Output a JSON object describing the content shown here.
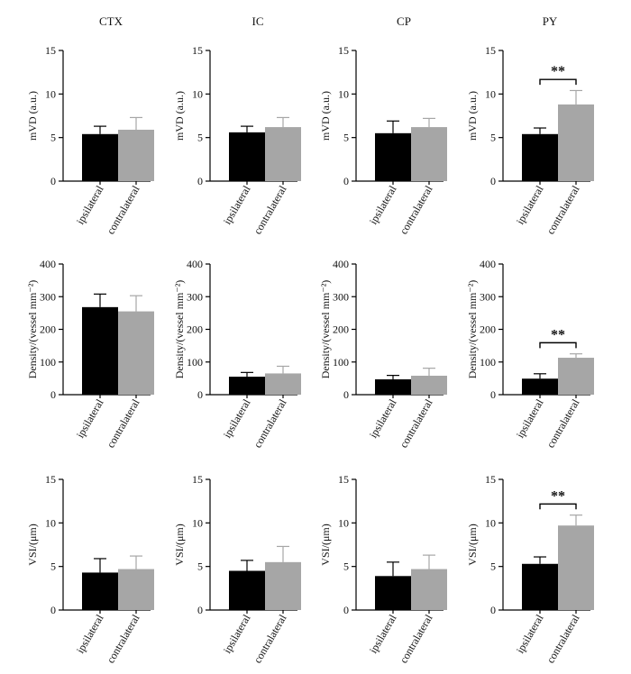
{
  "column_titles": [
    "CTX",
    "IC",
    "CP",
    "PY"
  ],
  "colors": {
    "ipsilateral": "#000000",
    "contralateral": "#a6a6a6",
    "axis": "#000000"
  },
  "chart_data": [
    {
      "type": "bar",
      "column": "CTX",
      "ylabel": "mVD (a.u.)",
      "categories": [
        "ipsilateral",
        "contralateral"
      ],
      "values": [
        5.4,
        5.9
      ],
      "errors": [
        0.9,
        1.4
      ],
      "ylim": [
        0,
        15
      ],
      "yticks": [
        0,
        5,
        10,
        15
      ],
      "significance": null
    },
    {
      "type": "bar",
      "column": "IC",
      "ylabel": "mVD (a.u.)",
      "categories": [
        "ipsilateral",
        "contralateral"
      ],
      "values": [
        5.6,
        6.2
      ],
      "errors": [
        0.7,
        1.1
      ],
      "ylim": [
        0,
        15
      ],
      "yticks": [
        0,
        5,
        10,
        15
      ],
      "significance": null
    },
    {
      "type": "bar",
      "column": "CP",
      "ylabel": "mVD (a.u.)",
      "categories": [
        "ipsilateral",
        "contralateral"
      ],
      "values": [
        5.5,
        6.2
      ],
      "errors": [
        1.4,
        1.0
      ],
      "ylim": [
        0,
        15
      ],
      "yticks": [
        0,
        5,
        10,
        15
      ],
      "significance": null
    },
    {
      "type": "bar",
      "column": "PY",
      "ylabel": "mVD (a.u.)",
      "categories": [
        "ipsilateral",
        "contralateral"
      ],
      "values": [
        5.4,
        8.8
      ],
      "errors": [
        0.7,
        1.6
      ],
      "ylim": [
        0,
        15
      ],
      "yticks": [
        0,
        5,
        10,
        15
      ],
      "significance": "**"
    },
    {
      "type": "bar",
      "column": "CTX",
      "ylabel": "Density/(vessel mm⁻²)",
      "categories": [
        "ipsilateral",
        "contralateral"
      ],
      "values": [
        268,
        255
      ],
      "errors": [
        40,
        48
      ],
      "ylim": [
        0,
        400
      ],
      "yticks": [
        0,
        100,
        200,
        300,
        400
      ],
      "significance": null
    },
    {
      "type": "bar",
      "column": "IC",
      "ylabel": "Density/(vessel mm⁻²)",
      "categories": [
        "ipsilateral",
        "contralateral"
      ],
      "values": [
        55,
        65
      ],
      "errors": [
        13,
        22
      ],
      "ylim": [
        0,
        400
      ],
      "yticks": [
        0,
        100,
        200,
        300,
        400
      ],
      "significance": null
    },
    {
      "type": "bar",
      "column": "CP",
      "ylabel": "Density/(vessel mm⁻²)",
      "categories": [
        "ipsilateral",
        "contralateral"
      ],
      "values": [
        47,
        58
      ],
      "errors": [
        12,
        23
      ],
      "ylim": [
        0,
        400
      ],
      "yticks": [
        0,
        100,
        200,
        300,
        400
      ],
      "significance": null
    },
    {
      "type": "bar",
      "column": "PY",
      "ylabel": "Density/(vessel mm⁻²)",
      "categories": [
        "ipsilateral",
        "contralateral"
      ],
      "values": [
        49,
        113
      ],
      "errors": [
        15,
        12
      ],
      "ylim": [
        0,
        400
      ],
      "yticks": [
        0,
        100,
        200,
        300,
        400
      ],
      "significance": "**"
    },
    {
      "type": "bar",
      "column": "CTX",
      "ylabel": "VSI/(μm)",
      "categories": [
        "ipsilateral",
        "contralateral"
      ],
      "values": [
        4.3,
        4.7
      ],
      "errors": [
        1.6,
        1.5
      ],
      "ylim": [
        0,
        15
      ],
      "yticks": [
        0,
        5,
        10,
        15
      ],
      "significance": null
    },
    {
      "type": "bar",
      "column": "IC",
      "ylabel": "VSI/(μm)",
      "categories": [
        "ipsilateral",
        "contralateral"
      ],
      "values": [
        4.5,
        5.5
      ],
      "errors": [
        1.2,
        1.8
      ],
      "ylim": [
        0,
        15
      ],
      "yticks": [
        0,
        5,
        10,
        15
      ],
      "significance": null
    },
    {
      "type": "bar",
      "column": "CP",
      "ylabel": "VSI/(μm)",
      "categories": [
        "ipsilateral",
        "contralateral"
      ],
      "values": [
        3.9,
        4.7
      ],
      "errors": [
        1.6,
        1.6
      ],
      "ylim": [
        0,
        15
      ],
      "yticks": [
        0,
        5,
        10,
        15
      ],
      "significance": null
    },
    {
      "type": "bar",
      "column": "PY",
      "ylabel": "VSI/(μm)",
      "categories": [
        "ipsilateral",
        "contralateral"
      ],
      "values": [
        5.3,
        9.7
      ],
      "errors": [
        0.8,
        1.2
      ],
      "ylim": [
        0,
        15
      ],
      "yticks": [
        0,
        5,
        10,
        15
      ],
      "significance": "**"
    }
  ]
}
